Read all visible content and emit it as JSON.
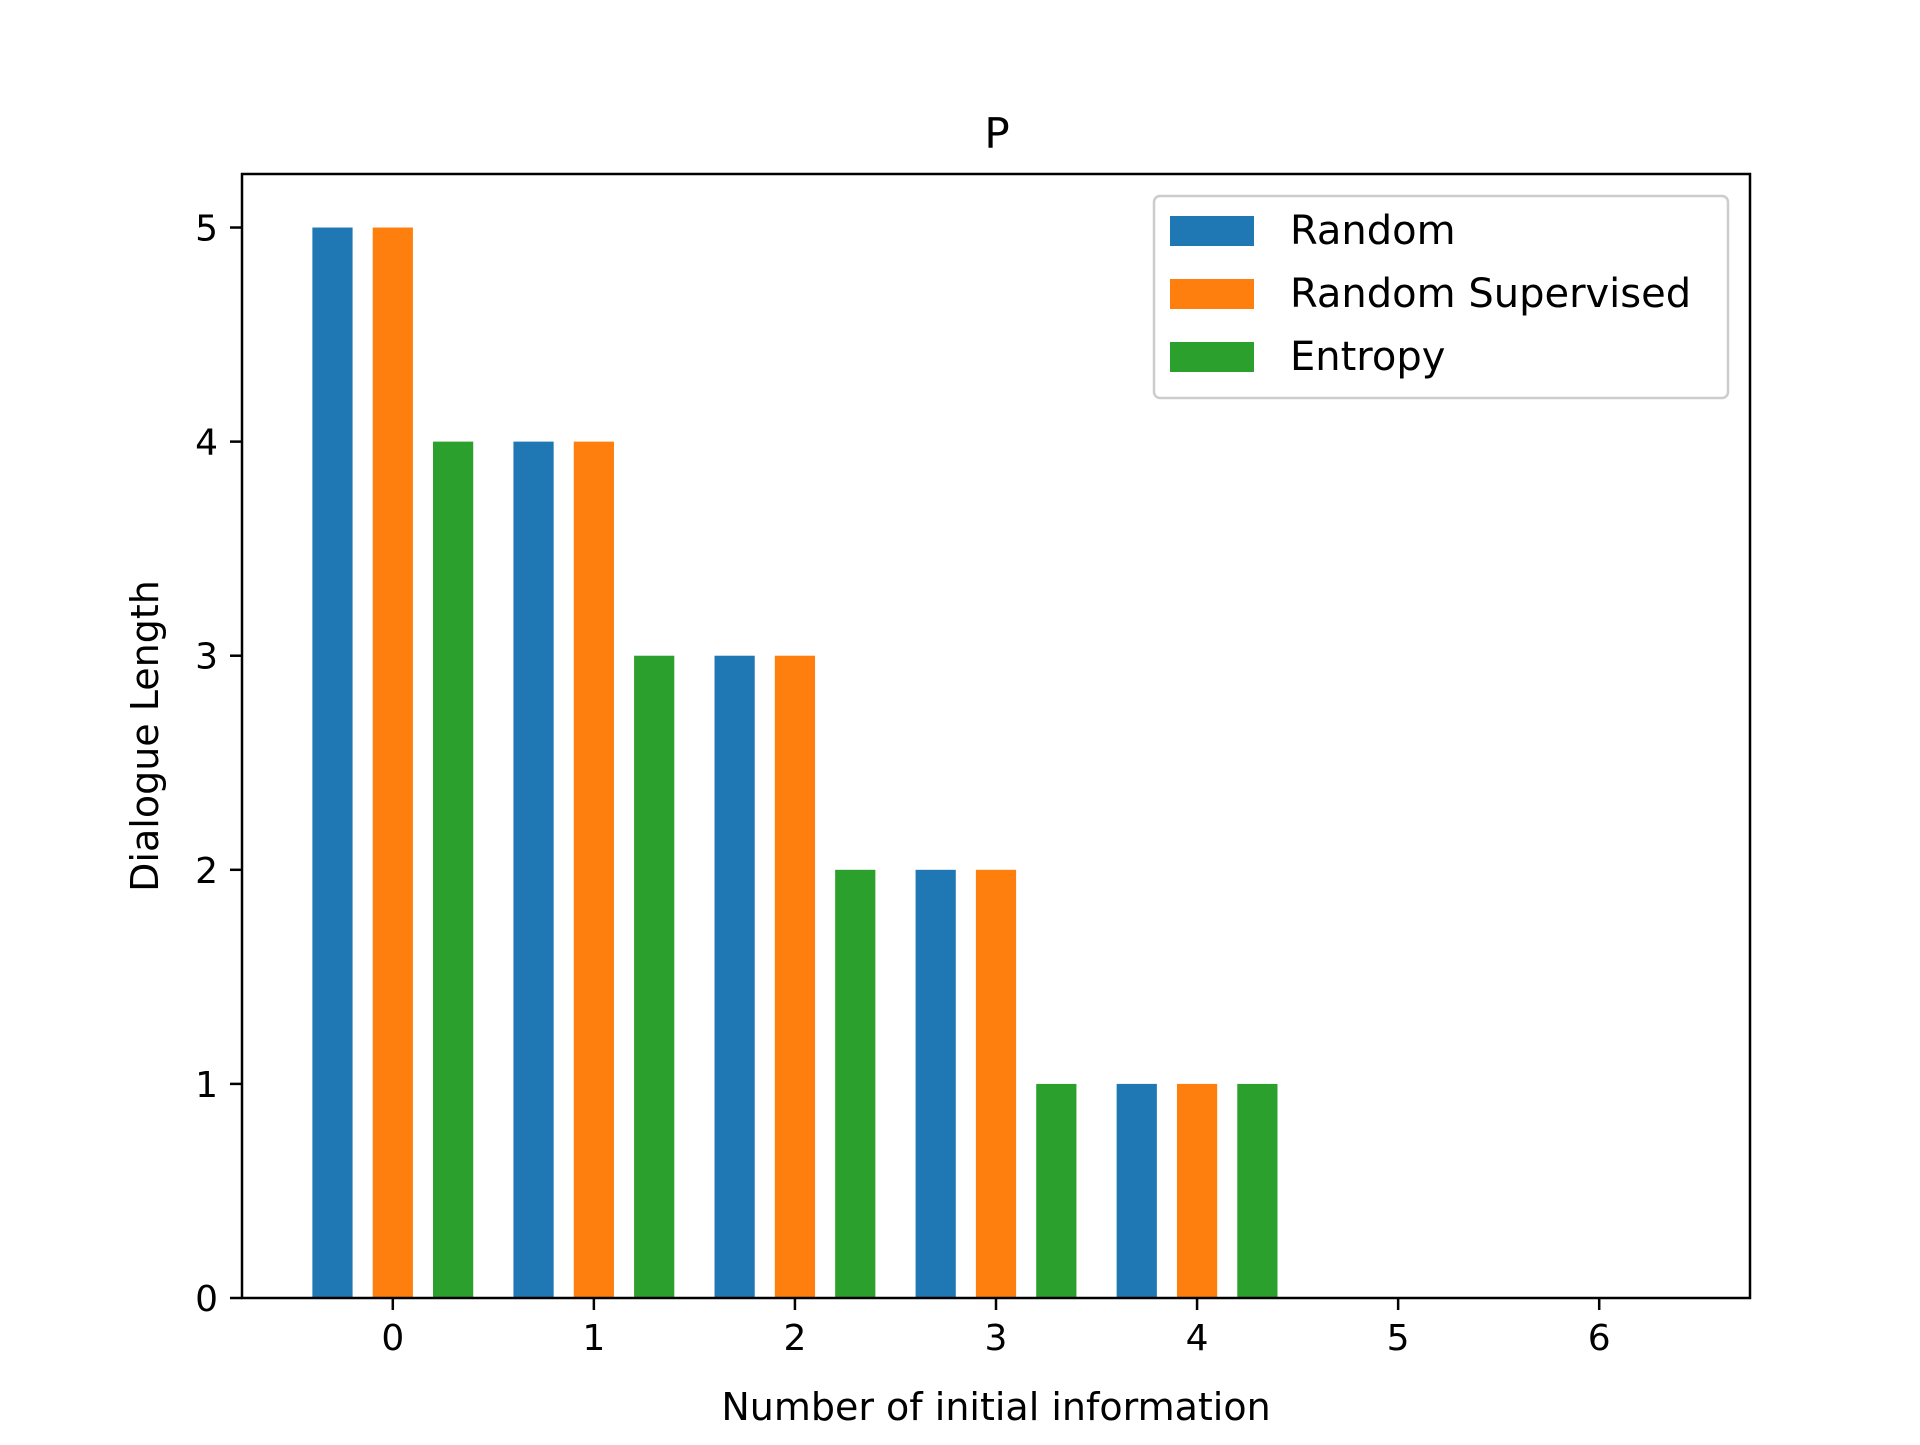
{
  "chart_data": {
    "type": "bar",
    "title": "P",
    "xlabel": "Number of initial information",
    "ylabel": "Dialogue Length",
    "categories": [
      "0",
      "1",
      "2",
      "3",
      "4",
      "5",
      "6"
    ],
    "x_ticks": [
      "0",
      "1",
      "2",
      "3",
      "4",
      "5",
      "6"
    ],
    "y_ticks": [
      "0",
      "1",
      "2",
      "3",
      "4",
      "5"
    ],
    "xlim": [
      -0.75,
      6.75
    ],
    "ylim": [
      0,
      5.25
    ],
    "grid": false,
    "legend_position": "top-right",
    "series": [
      {
        "name": "Random",
        "color": "#1f77b4",
        "values": [
          5,
          4,
          3,
          2,
          1,
          0,
          0
        ]
      },
      {
        "name": "Random Supervised",
        "color": "#ff7f0e",
        "values": [
          5,
          4,
          3,
          2,
          1,
          0,
          0
        ]
      },
      {
        "name": "Entropy",
        "color": "#2ca02c",
        "values": [
          4,
          3,
          2,
          1,
          1,
          0,
          0
        ]
      }
    ]
  }
}
